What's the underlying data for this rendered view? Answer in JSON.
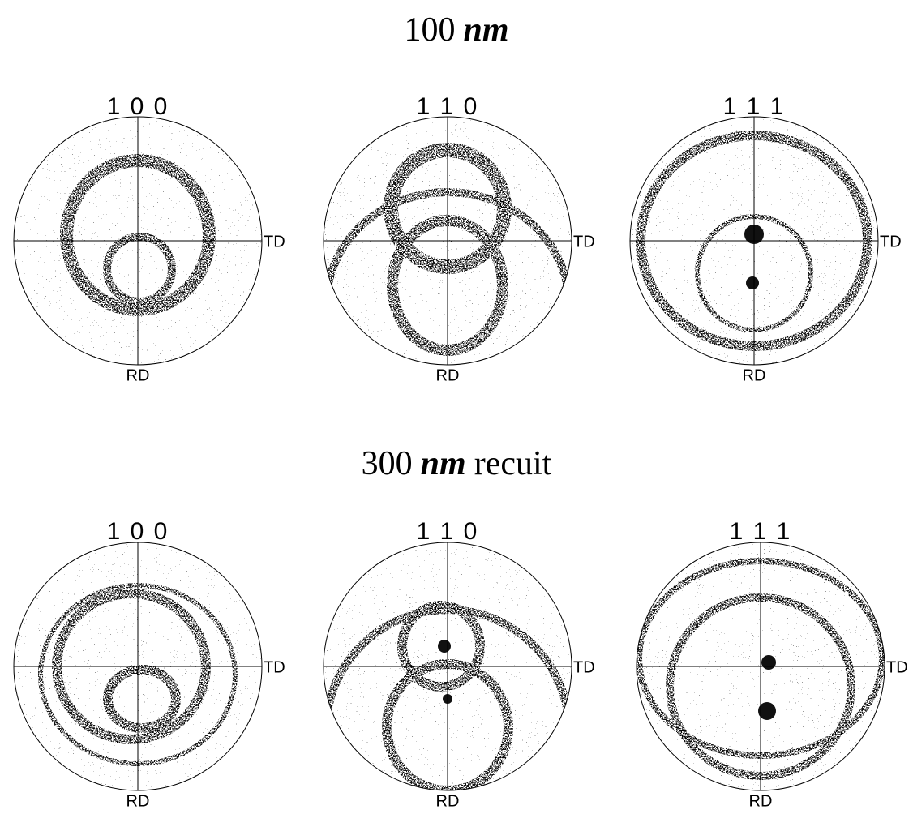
{
  "rows": [
    {
      "title": {
        "value": "100",
        "unit": "nm"
      },
      "figures": [
        {
          "label": "1 0 0",
          "td": "TD",
          "rd": "RD"
        },
        {
          "label": "1 1 0",
          "td": "TD",
          "rd": "RD"
        },
        {
          "label": "1 1 1",
          "td": "TD",
          "rd": "RD"
        }
      ]
    },
    {
      "title": {
        "value": "300",
        "unit": "nm",
        "suffix": "recuit"
      },
      "figures": [
        {
          "label": "1 0 0",
          "td": "TD",
          "rd": "RD"
        },
        {
          "label": "1 1 0",
          "td": "TD",
          "rd": "RD"
        },
        {
          "label": "1 1 1",
          "td": "TD",
          "rd": "RD"
        }
      ]
    }
  ]
}
